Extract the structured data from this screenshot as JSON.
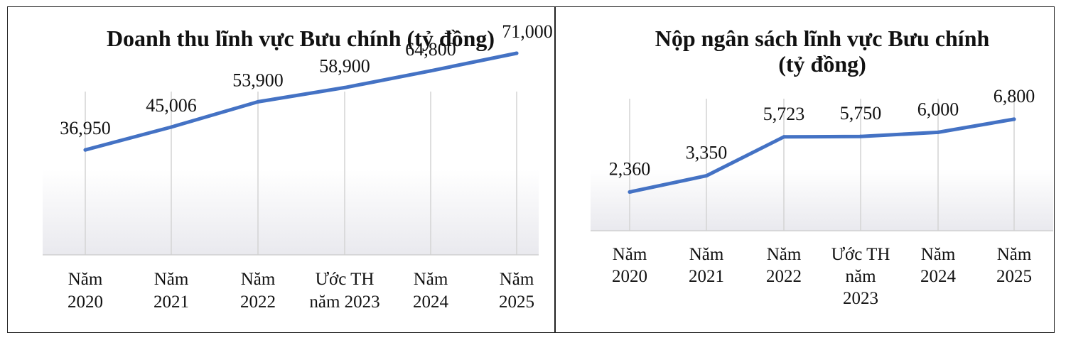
{
  "chart_data": [
    {
      "type": "line",
      "title": "Doanh thu lĩnh vực Bưu chính (tỷ đồng)",
      "categories": [
        [
          "Năm",
          "2020"
        ],
        [
          "Năm",
          "2021"
        ],
        [
          "Năm",
          "2022"
        ],
        [
          "Ước TH",
          "năm 2023"
        ],
        [
          "Năm",
          "2024"
        ],
        [
          "Năm",
          "2025"
        ]
      ],
      "values": [
        36950,
        45006,
        53900,
        58900,
        64800,
        71000
      ],
      "data_labels": [
        "36,950",
        "45,006",
        "53,900",
        "58,900",
        "64,800",
        "71,000"
      ],
      "ylim": [
        0,
        80000
      ],
      "grid": "vertical",
      "line_color": "#4472C4"
    },
    {
      "type": "line",
      "title": [
        "Nộp ngân sách lĩnh vực Bưu chính",
        "(tỷ đồng)"
      ],
      "categories": [
        [
          "Năm",
          "2020"
        ],
        [
          "Năm",
          "2021"
        ],
        [
          "Năm",
          "2022"
        ],
        [
          "Ước TH",
          "năm",
          "2023"
        ],
        [
          "Năm",
          "2024"
        ],
        [
          "Năm",
          "2025"
        ]
      ],
      "values": [
        2360,
        3350,
        5723,
        5750,
        6000,
        6800
      ],
      "data_labels": [
        "2,360",
        "3,350",
        "5,723",
        "5,750",
        "6,000",
        "6,800"
      ],
      "ylim": [
        0,
        10000
      ],
      "grid": "vertical",
      "line_color": "#4472C4"
    }
  ]
}
